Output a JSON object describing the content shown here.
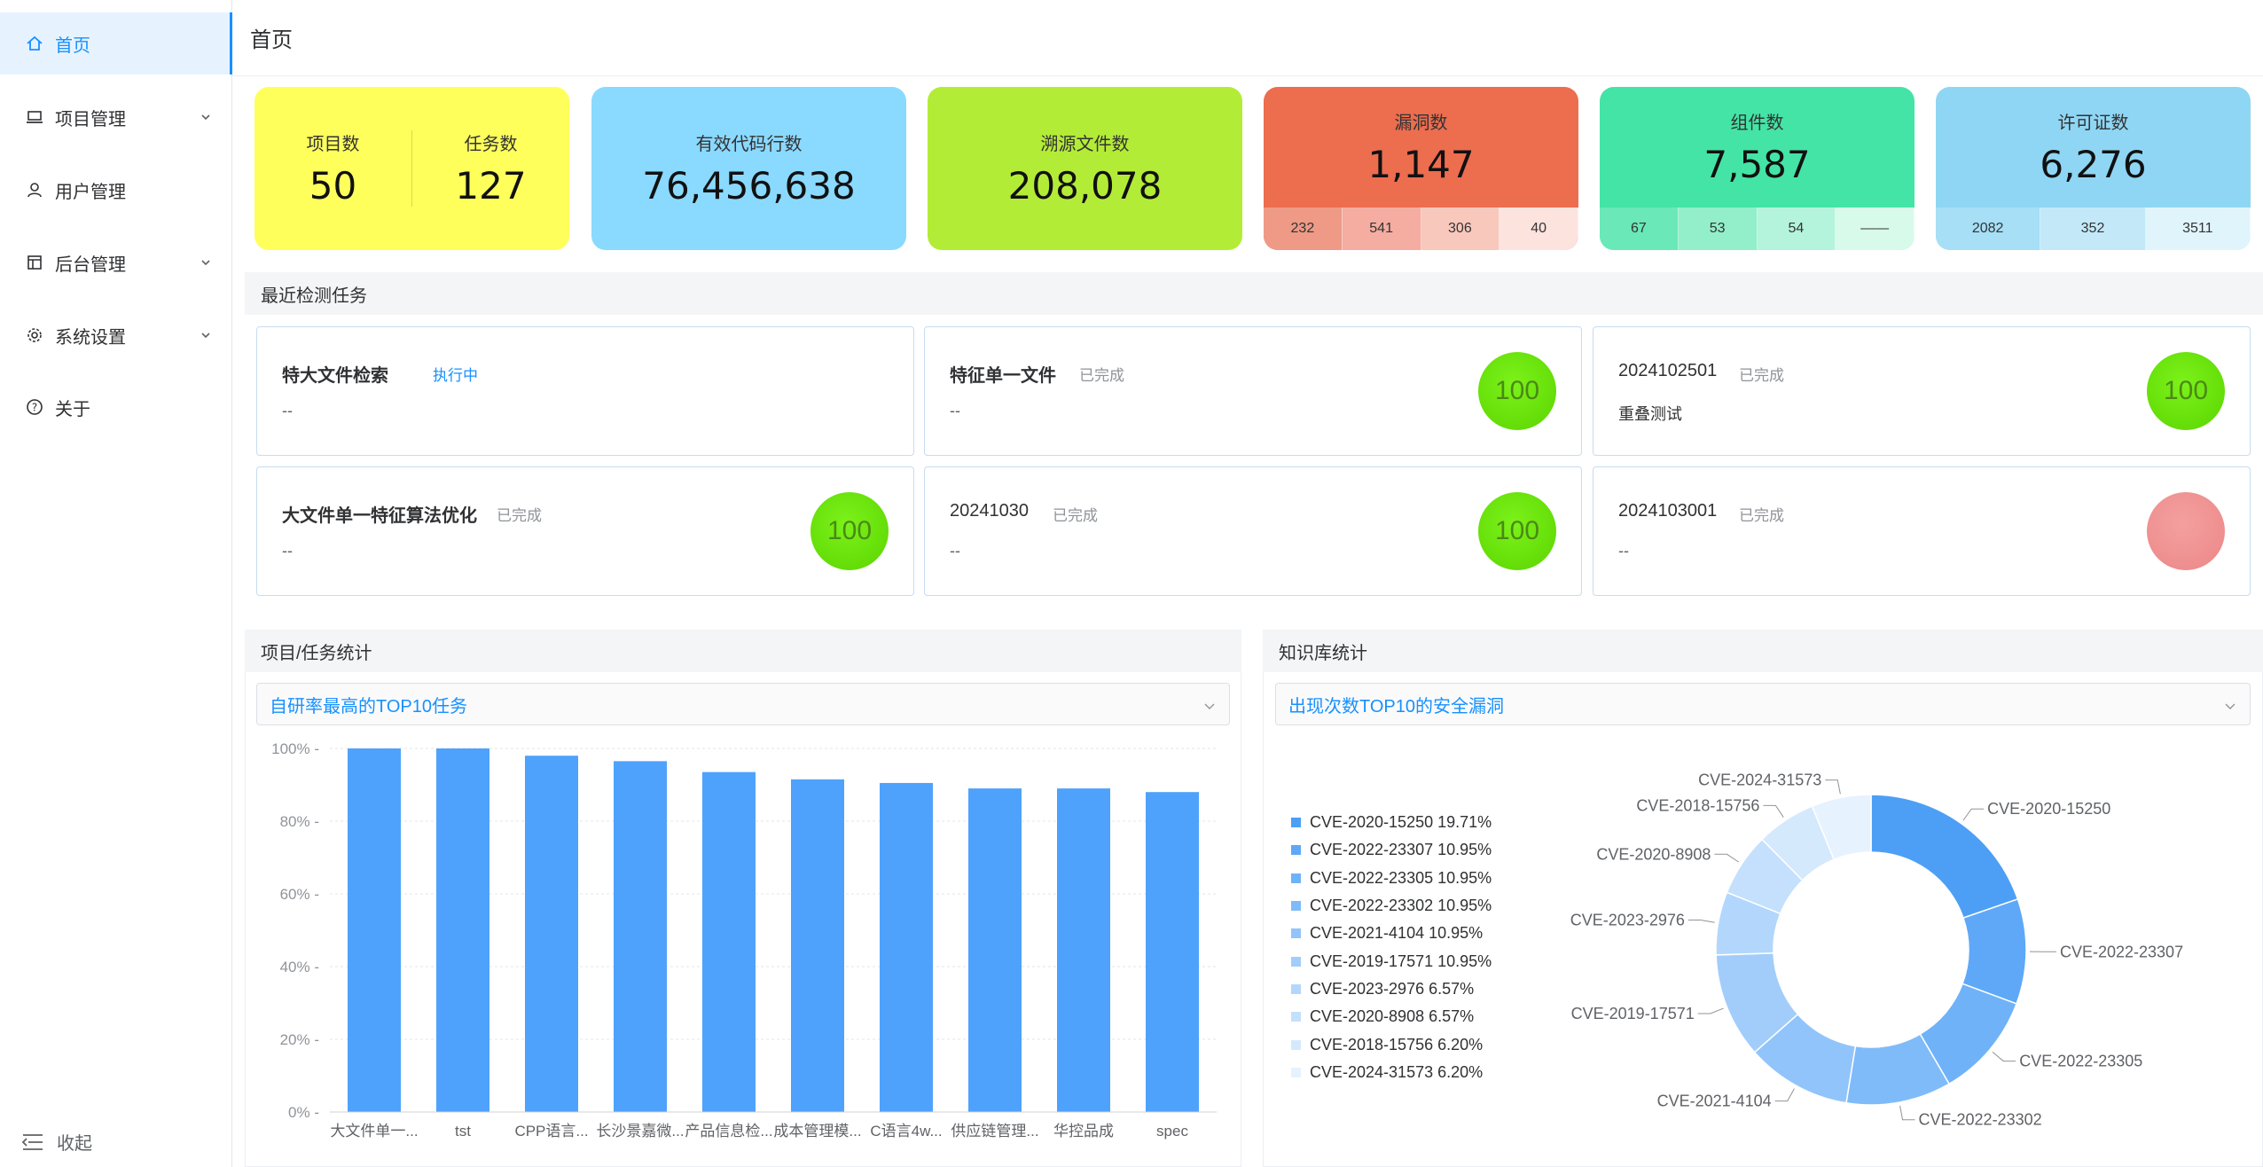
{
  "sidebar": {
    "items": [
      {
        "label": "首页",
        "icon": "home-icon",
        "active": true
      },
      {
        "label": "项目管理",
        "icon": "laptop-icon",
        "has_submenu": true
      },
      {
        "label": "用户管理",
        "icon": "user-icon"
      },
      {
        "label": "后台管理",
        "icon": "board-icon",
        "has_submenu": true
      },
      {
        "label": "系统设置",
        "icon": "gear-icon",
        "has_submenu": true
      },
      {
        "label": "关于",
        "icon": "question-icon"
      }
    ],
    "collapse_label": "收起"
  },
  "header": {
    "title": "首页"
  },
  "stats": {
    "projects": {
      "label": "项目数",
      "value": "50"
    },
    "tasks": {
      "label": "任务数",
      "value": "127"
    },
    "code_lines": {
      "label": "有效代码行数",
      "value": "76,456,638"
    },
    "trace_files": {
      "label": "溯源文件数",
      "value": "208,078"
    },
    "vulns": {
      "label": "漏洞数",
      "value": "1,147",
      "breakdown": [
        "232",
        "541",
        "306",
        "40"
      ]
    },
    "components": {
      "label": "组件数",
      "value": "7,587",
      "breakdown": [
        "67",
        "53",
        "54",
        "——"
      ]
    },
    "licenses": {
      "label": "许可证数",
      "value": "6,276",
      "breakdown": [
        "2082",
        "352",
        "3511"
      ]
    }
  },
  "colors": {
    "projects_card": "#ffff5c",
    "code_card": "#8ad9ff",
    "trace_card": "#b3ec37",
    "vuln_card": "#ed6d4f",
    "vuln_segs": [
      "#ee9a86",
      "#f4ada0",
      "#f8c8bd",
      "#fde3de"
    ],
    "comp_card": "#44e4a6",
    "comp_segs": [
      "#6ae8b8",
      "#92efca",
      "#b5f4dc",
      "#d8faeb"
    ],
    "lic_card": "#8fd6f4",
    "lic_segs": [
      "#a6dff6",
      "#c3e9f9",
      "#e0f4fc"
    ],
    "bar": "#4ea2fc",
    "accent": "#1890ff"
  },
  "recent": {
    "title": "最近检测任务",
    "tasks": [
      {
        "name": "特大文件检索",
        "status": "执行中",
        "desc": "--",
        "progress": null
      },
      {
        "name": "特征单一文件",
        "status": "已完成",
        "desc": "--",
        "progress": "100"
      },
      {
        "name": "2024102501",
        "status": "已完成",
        "desc": "重叠测试",
        "progress": "100"
      },
      {
        "name": "大文件单一特征算法优化",
        "status": "已完成",
        "desc": "--",
        "progress": "100"
      },
      {
        "name": "20241030",
        "status": "已完成",
        "desc": "--",
        "progress": "100"
      },
      {
        "name": "2024103001",
        "status": "已完成",
        "desc": "--",
        "progress": ""
      }
    ]
  },
  "project_stats": {
    "title": "项目/任务统计",
    "select_value": "自研率最高的TOP10任务"
  },
  "kb_stats": {
    "title": "知识库统计",
    "select_value": "出现次数TOP10的安全漏洞"
  },
  "chart_data": [
    {
      "type": "bar",
      "categories": [
        "大文件单一...",
        "tst",
        "CPP语言...",
        "长沙景嘉微...",
        "产品信息检...",
        "成本管理模...",
        "C语言4w...",
        "供应链管理...",
        "华控品成",
        "spec"
      ],
      "values": [
        100,
        100,
        98,
        96.5,
        93.5,
        91.5,
        90.5,
        89,
        89,
        88
      ],
      "ylim": [
        0,
        100
      ],
      "yticks": [
        "0%",
        "20%",
        "40%",
        "60%",
        "80%",
        "100%"
      ],
      "grid": true
    },
    {
      "type": "pie",
      "donut": true,
      "labels": [
        "CVE-2020-15250",
        "CVE-2022-23307",
        "CVE-2022-23305",
        "CVE-2022-23302",
        "CVE-2021-4104",
        "CVE-2019-17571",
        "CVE-2023-2976",
        "CVE-2020-8908",
        "CVE-2018-15756",
        "CVE-2024-31573"
      ],
      "values": [
        19.71,
        10.95,
        10.95,
        10.95,
        10.95,
        10.95,
        6.57,
        6.57,
        6.2,
        6.2
      ],
      "legend_texts": [
        "CVE-2020-15250 19.71%",
        "CVE-2022-23307 10.95%",
        "CVE-2022-23305 10.95%",
        "CVE-2022-23302 10.95%",
        "CVE-2021-4104 10.95%",
        "CVE-2019-17571 10.95%",
        "CVE-2023-2976 6.57%",
        "CVE-2020-8908 6.57%",
        "CVE-2018-15756 6.20%",
        "CVE-2024-31573 6.20%"
      ],
      "colors": [
        "#4d9ff5",
        "#5ea8f7",
        "#6fb2f8",
        "#80bbf9",
        "#91c4fa",
        "#a2cdfb",
        "#b3d7fc",
        "#c4e0fd",
        "#d5e9fd",
        "#e6f2fe"
      ],
      "legend": "left"
    }
  ]
}
